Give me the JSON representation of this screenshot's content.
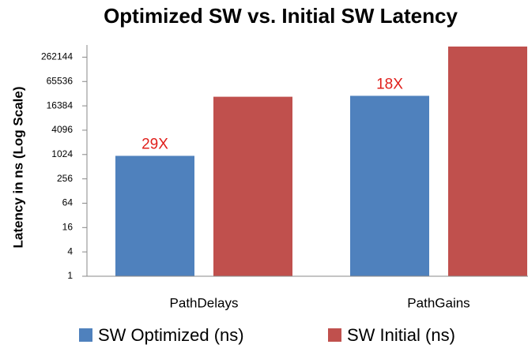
{
  "chart_data": {
    "type": "bar",
    "title": "Optimized SW vs. Initial SW Latency",
    "y_label": "Latency in ns (Log Scale)",
    "categories": [
      "PathDelays",
      "PathGains"
    ],
    "series": [
      {
        "name": "SW Optimized (ns)",
        "color": "#4f81bd",
        "values": [
          950,
          29000
        ]
      },
      {
        "name": "SW Initial (ns)",
        "color": "#c0504d",
        "values": [
          27500,
          480000
        ]
      }
    ],
    "annotations": [
      "29X",
      "18X"
    ],
    "log_scale": true,
    "ylim": [
      1,
      524288
    ],
    "yticks": [
      1,
      4,
      16,
      64,
      256,
      1024,
      4096,
      16384,
      65536,
      262144
    ],
    "grid": false,
    "legend": "bottom"
  }
}
